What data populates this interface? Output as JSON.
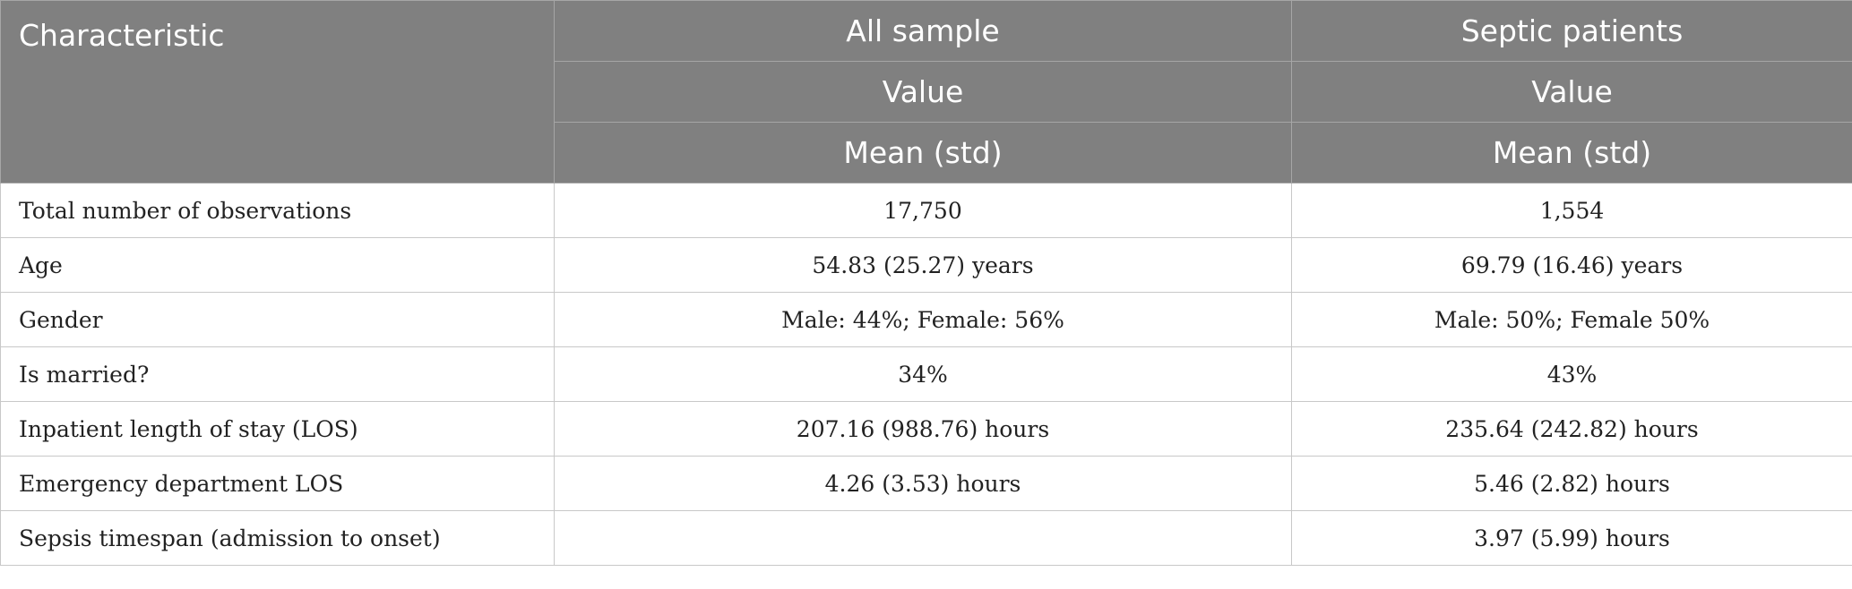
{
  "header": {
    "characteristic": "Characteristic",
    "groups": [
      {
        "title": "All sample",
        "sub1": "Value",
        "sub2": "Mean (std)"
      },
      {
        "title": "Septic patients",
        "sub1": "Value",
        "sub2": "Mean (std)"
      }
    ]
  },
  "rows": [
    {
      "label": "Total number of observations",
      "all": "17,750",
      "septic": "1,554"
    },
    {
      "label": "Age",
      "all": "54.83 (25.27) years",
      "septic": "69.79 (16.46) years"
    },
    {
      "label": "Gender",
      "all": "Male: 44%; Female: 56%",
      "septic": "Male: 50%; Female 50%"
    },
    {
      "label": "Is married?",
      "all": "34%",
      "septic": "43%"
    },
    {
      "label": "Inpatient length of stay (LOS)",
      "all": "207.16 (988.76) hours",
      "septic": "235.64 (242.82) hours"
    },
    {
      "label": "Emergency department LOS",
      "all": "4.26 (3.53) hours",
      "septic": "5.46 (2.82) hours"
    },
    {
      "label": "Sepsis timespan (admission to onset)",
      "all": "",
      "septic": "3.97 (5.99) hours"
    }
  ]
}
